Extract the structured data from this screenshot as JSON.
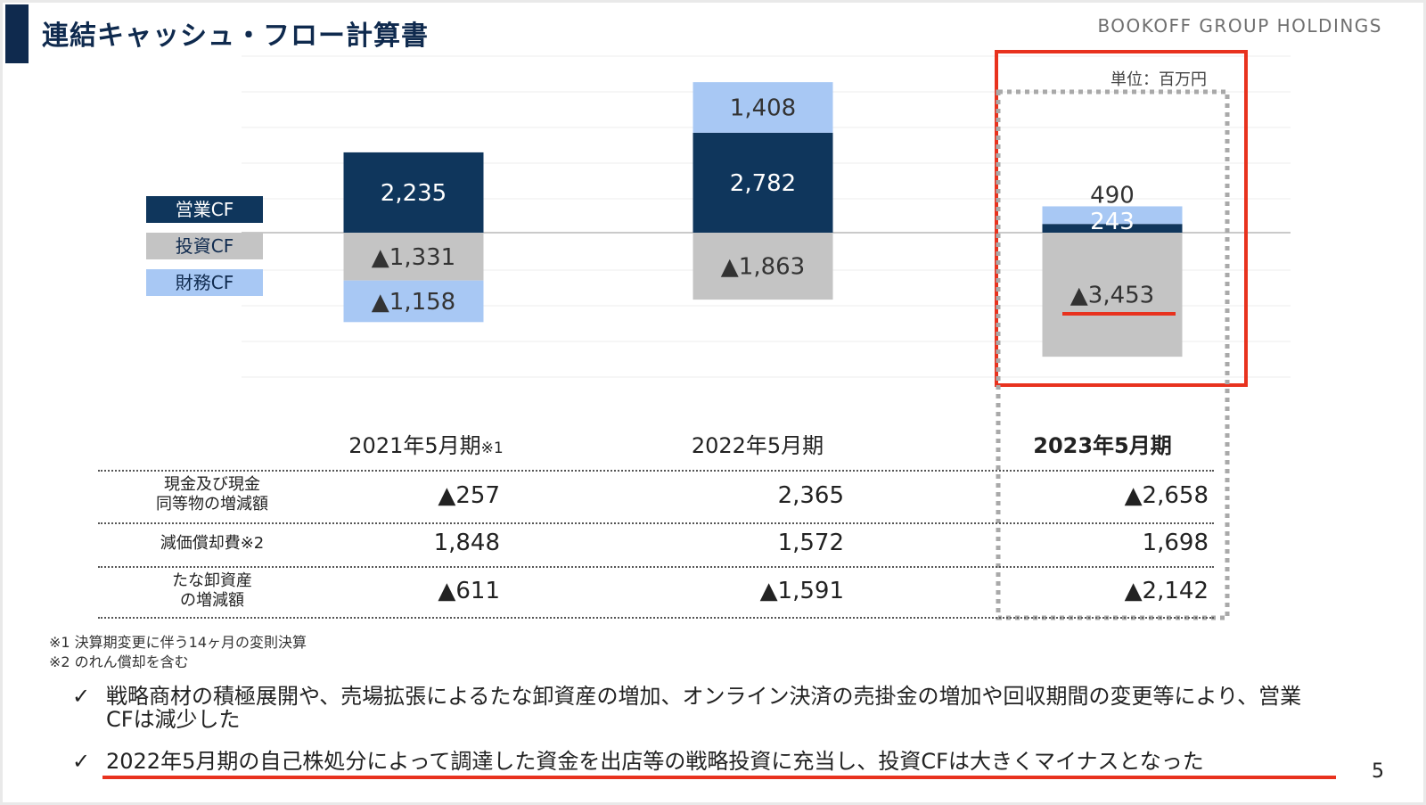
{
  "header": {
    "title": "連結キャッシュ・フロー計算書",
    "company": "BOOKOFF GROUP HOLDINGS"
  },
  "legend": {
    "operating": "営業CF",
    "investing": "投資CF",
    "financing": "財務CF"
  },
  "unit_label": "単位：百万円",
  "colors": {
    "operating": "#0f365c",
    "investing": "#c4c4c4",
    "financing": "#a8c8f4",
    "highlight_red": "#e8321e",
    "title_navy": "#0f2a4e"
  },
  "chart_data": {
    "type": "bar",
    "stacked": true,
    "categories": [
      "2021年5月期",
      "2022年5月期",
      "2023年5月期"
    ],
    "series": [
      {
        "name": "営業CF",
        "values": [
          2235,
          2782,
          243
        ],
        "labels": [
          "2,235",
          "2,782",
          "243"
        ]
      },
      {
        "name": "投資CF",
        "values": [
          -1331,
          -1863,
          -3453
        ],
        "labels": [
          "▲1,331",
          "▲1,863",
          "▲3,453"
        ]
      },
      {
        "name": "財務CF",
        "values": [
          -1158,
          1408,
          490
        ],
        "labels": [
          "▲1,158",
          "1,408",
          "490"
        ]
      }
    ],
    "xlabel": "",
    "ylabel": "",
    "grid": true,
    "legend_position": "left",
    "highlight_category": "2023年5月期"
  },
  "periods": [
    {
      "label": "2021年5月期",
      "note": "※1"
    },
    {
      "label": "2022年5月期",
      "note": ""
    },
    {
      "label": "2023年5月期",
      "note": ""
    }
  ],
  "table": {
    "rows": [
      {
        "label_line1": "現金及び現金",
        "label_line2": "同等物の増減額",
        "values": [
          "▲257",
          "2,365",
          "▲2,658"
        ]
      },
      {
        "label_line1": "減価償却費※2",
        "label_line2": "",
        "values": [
          "1,848",
          "1,572",
          "1,698"
        ]
      },
      {
        "label_line1": "たな卸資産",
        "label_line2": "の増減額",
        "values": [
          "▲611",
          "▲1,591",
          "▲2,142"
        ]
      }
    ]
  },
  "footnotes": [
    "※1 決算期変更に伴う14ヶ月の変則決算",
    "※2 のれん償却を含む"
  ],
  "bullets": [
    {
      "check": "✓",
      "text": "戦略商材の積極展開や、売場拡張によるたな卸資産の増加、オンライン決済の売掛金の増加や回収期間の変更等により、営業CFは減少した"
    },
    {
      "check": "✓",
      "text": "2022年5月期の自己株処分によって調達した資金を出店等の戦略投資に充当し、投資CFは大きくマイナスとなった"
    }
  ],
  "page_number": "5"
}
